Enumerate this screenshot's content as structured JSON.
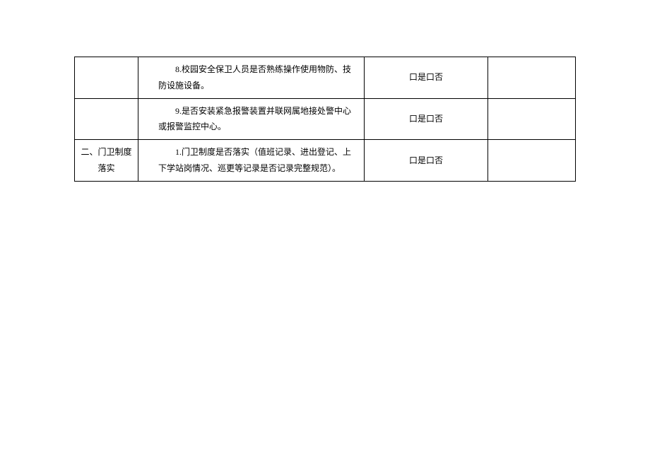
{
  "table": {
    "border_color": "#000000",
    "background_color": "#ffffff",
    "font_family": "SimSun",
    "font_size": 12,
    "text_color": "#000000",
    "columns": {
      "category_width": 90,
      "item_width": 320,
      "check_width": 175
    },
    "checkbox_glyph": "口",
    "yes_text": "是",
    "no_text": "否",
    "rows": [
      {
        "category": "",
        "item": "　　8.校园安全保卫人员是否熟练操作使用物防、技防设施设备。",
        "check": "口是口否",
        "remark": ""
      },
      {
        "category": "",
        "item": "　　9.是否安装紧急报警装置并联网属地接处警中心或报警监控中心。",
        "check": "口是口否",
        "remark": ""
      },
      {
        "category": "二、门卫制度落实",
        "item": "　　1.门卫制度是否落实（值班记录、进出登记、上下学站岗情况、巡更等记录是否记录完整规范）。",
        "check": "口是口否",
        "remark": ""
      }
    ]
  }
}
